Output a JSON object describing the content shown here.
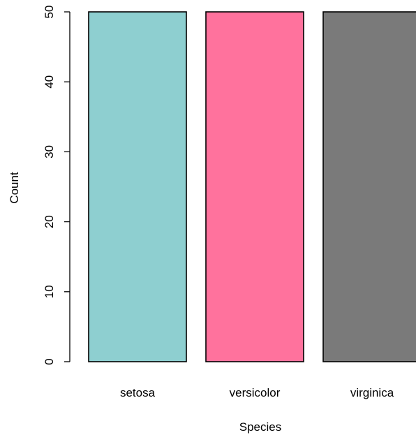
{
  "chart_data": {
    "type": "bar",
    "categories": [
      "setosa",
      "versicolor",
      "virginica"
    ],
    "values": [
      50,
      50,
      50
    ],
    "colors": [
      "#8ECFD0",
      "#FF729D",
      "#7A7A7A"
    ],
    "xlabel": "Species",
    "ylabel": "Count",
    "ylim": [
      0,
      50
    ],
    "yticks": [
      0,
      10,
      20,
      30,
      40,
      50
    ],
    "grid": false,
    "legend": "none"
  }
}
